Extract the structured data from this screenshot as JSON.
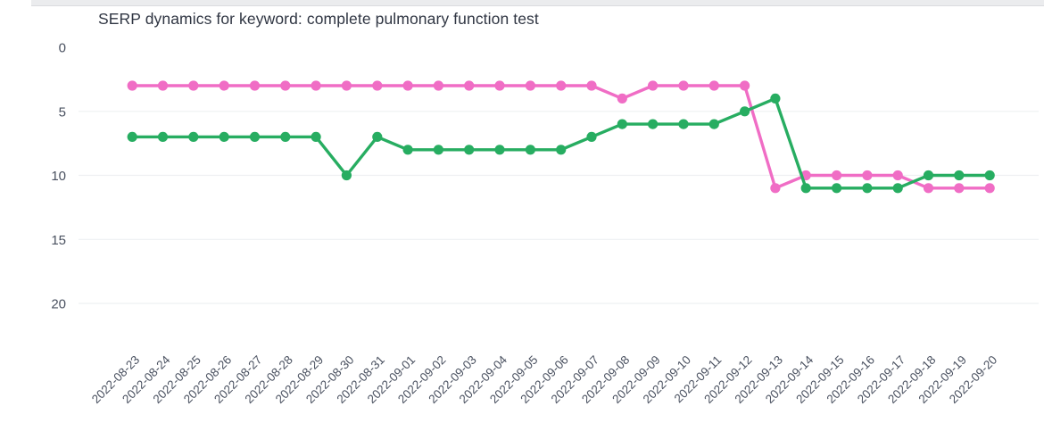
{
  "colors": {
    "grid": "#eef0f2",
    "axis_text": "#4a5160",
    "title_text": "#303643",
    "top_bar": "#ebecee",
    "pink": "#f06dc5",
    "green": "#27ad61"
  },
  "chart_data": {
    "type": "line",
    "title": "SERP dynamics for keyword: complete pulmonary function test",
    "xlabel": "",
    "ylabel": "",
    "y_axis_inverted": true,
    "ylim": [
      0,
      22
    ],
    "yticks": [
      0,
      5,
      10,
      15,
      20
    ],
    "gridline_ticks": [
      5,
      10,
      15,
      20
    ],
    "grid": "horizontal",
    "legend": "none",
    "x": [
      "2022-08-23",
      "2022-08-24",
      "2022-08-25",
      "2022-08-26",
      "2022-08-27",
      "2022-08-28",
      "2022-08-29",
      "2022-08-30",
      "2022-08-31",
      "2022-09-01",
      "2022-09-02",
      "2022-09-03",
      "2022-09-04",
      "2022-09-05",
      "2022-09-06",
      "2022-09-07",
      "2022-09-08",
      "2022-09-09",
      "2022-09-10",
      "2022-09-11",
      "2022-09-12",
      "2022-09-13",
      "2022-09-14",
      "2022-09-15",
      "2022-09-16",
      "2022-09-17",
      "2022-09-18",
      "2022-09-19",
      "2022-09-20"
    ],
    "series": [
      {
        "name": "pink",
        "color": "#f06dc5",
        "values": [
          3,
          3,
          3,
          3,
          3,
          3,
          3,
          3,
          3,
          3,
          3,
          3,
          3,
          3,
          3,
          3,
          4,
          3,
          3,
          3,
          3,
          11,
          10,
          10,
          10,
          10,
          11,
          11,
          11
        ]
      },
      {
        "name": "green",
        "color": "#27ad61",
        "values": [
          7,
          7,
          7,
          7,
          7,
          7,
          7,
          10,
          7,
          8,
          8,
          8,
          8,
          8,
          8,
          7,
          6,
          6,
          6,
          6,
          5,
          4,
          11,
          11,
          11,
          11,
          10,
          10,
          10
        ]
      }
    ]
  }
}
